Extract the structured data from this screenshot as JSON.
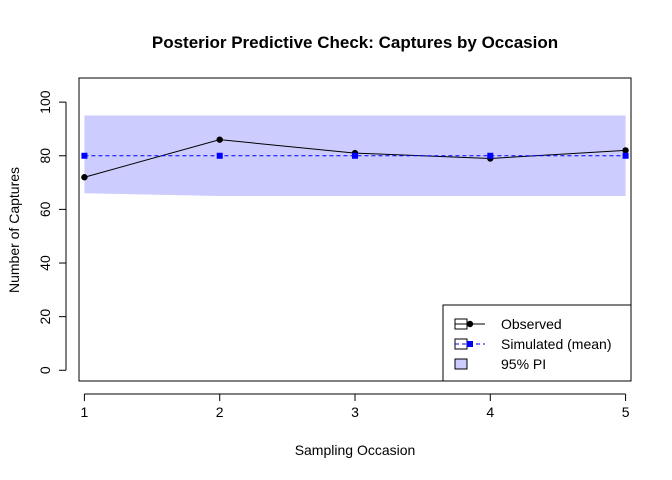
{
  "chart_data": {
    "type": "line",
    "title": "Posterior Predictive Check: Captures by Occasion",
    "xlabel": "Sampling Occasion",
    "ylabel": "Number of Captures",
    "x": [
      1,
      2,
      3,
      4,
      5
    ],
    "xlim": [
      0.96,
      5.04
    ],
    "ylim": [
      -4,
      109
    ],
    "xticks": [
      1,
      2,
      3,
      4,
      5
    ],
    "yticks": [
      0,
      20,
      40,
      60,
      80,
      100
    ],
    "grid": false,
    "legend_position": "bottom-right",
    "series": [
      {
        "name": "Observed",
        "values": [
          72,
          86,
          81,
          79,
          82
        ],
        "color": "#000000",
        "line": "solid",
        "marker": "circle"
      },
      {
        "name": "Simulated (mean)",
        "values": [
          80,
          80,
          80,
          80,
          80
        ],
        "color": "#0000ff",
        "line": "dashed",
        "marker": "square"
      }
    ],
    "interval": {
      "name": "95% PI",
      "lower": [
        66,
        65,
        65,
        65,
        65
      ],
      "upper": [
        95,
        95,
        95,
        95,
        95
      ],
      "color": "#ccccff"
    }
  }
}
